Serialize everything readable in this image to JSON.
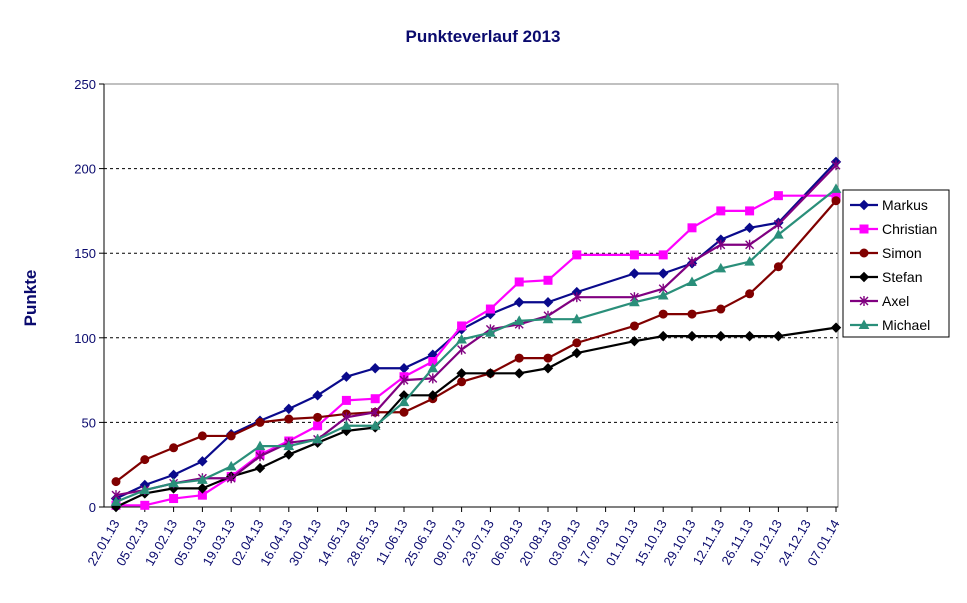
{
  "chart_data": {
    "type": "line",
    "title": "Punkteverlauf 2013",
    "xlabel": "",
    "ylabel": "Punkte",
    "ylim": [
      0,
      250
    ],
    "yticks": [
      0,
      50,
      100,
      150,
      200,
      250
    ],
    "grid": "horizontal dashed",
    "legend_position": "right",
    "categories": [
      "22.01.13",
      "05.02.13",
      "19.02.13",
      "05.03.13",
      "19.03.13",
      "02.04.13",
      "16.04.13",
      "30.04.13",
      "14.05.13",
      "28.05.13",
      "11.06.13",
      "25.06.13",
      "09.07.13",
      "23.07.13",
      "06.08.13",
      "20.08.13",
      "03.09.13",
      "17.09.13",
      "01.10.13",
      "15.10.13",
      "29.10.13",
      "12.11.13",
      "26.11.13",
      "10.12.13",
      "24.12.13",
      "07.01.14"
    ],
    "x": [
      0,
      1,
      2,
      3,
      4,
      5,
      6,
      7,
      8,
      9,
      10,
      11,
      12,
      13,
      14,
      15,
      16,
      17,
      18,
      19,
      20,
      21,
      22,
      23,
      24,
      25
    ],
    "series": [
      {
        "name": "Markus",
        "color": "#0a0a8c",
        "marker": "diamond",
        "points": [
          [
            0,
            5
          ],
          [
            1,
            13
          ],
          [
            2,
            19
          ],
          [
            3,
            27
          ],
          [
            4,
            43
          ],
          [
            5,
            51
          ],
          [
            6,
            58
          ],
          [
            7,
            66
          ],
          [
            8,
            77
          ],
          [
            9,
            82
          ],
          [
            10,
            82
          ],
          [
            11,
            90
          ],
          [
            12,
            105
          ],
          [
            13,
            114
          ],
          [
            14,
            121
          ],
          [
            15,
            121
          ],
          [
            16,
            127
          ],
          [
            18,
            138
          ],
          [
            19,
            138
          ],
          [
            20,
            144
          ],
          [
            21,
            158
          ],
          [
            22,
            165
          ],
          [
            23,
            168
          ],
          [
            25,
            204
          ]
        ]
      },
      {
        "name": "Christian",
        "color": "#ff00ff",
        "marker": "square",
        "points": [
          [
            0,
            1
          ],
          [
            1,
            1
          ],
          [
            2,
            5
          ],
          [
            3,
            7
          ],
          [
            4,
            18
          ],
          [
            5,
            31
          ],
          [
            6,
            39
          ],
          [
            7,
            48
          ],
          [
            8,
            63
          ],
          [
            9,
            64
          ],
          [
            10,
            77
          ],
          [
            11,
            86
          ],
          [
            12,
            107
          ],
          [
            13,
            117
          ],
          [
            14,
            133
          ],
          [
            15,
            134
          ],
          [
            16,
            149
          ],
          [
            18,
            149
          ],
          [
            19,
            149
          ],
          [
            20,
            165
          ],
          [
            21,
            175
          ],
          [
            22,
            175
          ],
          [
            23,
            184
          ],
          [
            25,
            184
          ]
        ]
      },
      {
        "name": "Simon",
        "color": "#800000",
        "marker": "circle",
        "points": [
          [
            0,
            15
          ],
          [
            1,
            28
          ],
          [
            2,
            35
          ],
          [
            3,
            42
          ],
          [
            4,
            42
          ],
          [
            5,
            50
          ],
          [
            6,
            52
          ],
          [
            7,
            53
          ],
          [
            8,
            55
          ],
          [
            9,
            56
          ],
          [
            10,
            56
          ],
          [
            11,
            64
          ],
          [
            12,
            74
          ],
          [
            13,
            79
          ],
          [
            14,
            88
          ],
          [
            15,
            88
          ],
          [
            16,
            97
          ],
          [
            18,
            107
          ],
          [
            19,
            114
          ],
          [
            20,
            114
          ],
          [
            21,
            117
          ],
          [
            22,
            126
          ],
          [
            23,
            142
          ],
          [
            25,
            181
          ]
        ]
      },
      {
        "name": "Stefan",
        "color": "#000000",
        "marker": "diamond",
        "points": [
          [
            0,
            0
          ],
          [
            1,
            8
          ],
          [
            2,
            11
          ],
          [
            3,
            11
          ],
          [
            4,
            18
          ],
          [
            5,
            23
          ],
          [
            6,
            31
          ],
          [
            7,
            38
          ],
          [
            8,
            45
          ],
          [
            9,
            47
          ],
          [
            10,
            66
          ],
          [
            11,
            66
          ],
          [
            12,
            79
          ],
          [
            13,
            79
          ],
          [
            14,
            79
          ],
          [
            15,
            82
          ],
          [
            16,
            91
          ],
          [
            18,
            98
          ],
          [
            19,
            101
          ],
          [
            20,
            101
          ],
          [
            21,
            101
          ],
          [
            22,
            101
          ],
          [
            23,
            101
          ],
          [
            25,
            106
          ]
        ]
      },
      {
        "name": "Axel",
        "color": "#800080",
        "marker": "star",
        "points": [
          [
            0,
            7
          ],
          [
            1,
            10
          ],
          [
            2,
            14
          ],
          [
            3,
            17
          ],
          [
            4,
            17
          ],
          [
            5,
            30
          ],
          [
            6,
            38
          ],
          [
            7,
            40
          ],
          [
            8,
            53
          ],
          [
            9,
            56
          ],
          [
            10,
            75
          ],
          [
            11,
            76
          ],
          [
            12,
            93
          ],
          [
            13,
            105
          ],
          [
            14,
            108
          ],
          [
            15,
            113
          ],
          [
            16,
            124
          ],
          [
            18,
            124
          ],
          [
            19,
            129
          ],
          [
            20,
            145
          ],
          [
            21,
            155
          ],
          [
            22,
            155
          ],
          [
            23,
            167
          ],
          [
            25,
            202
          ]
        ]
      },
      {
        "name": "Michael",
        "color": "#2a8f7a",
        "marker": "triangle",
        "points": [
          [
            0,
            3
          ],
          [
            1,
            10
          ],
          [
            2,
            14
          ],
          [
            3,
            16
          ],
          [
            4,
            24
          ],
          [
            5,
            36
          ],
          [
            6,
            36
          ],
          [
            7,
            40
          ],
          [
            8,
            48
          ],
          [
            9,
            48
          ],
          [
            10,
            62
          ],
          [
            11,
            82
          ],
          [
            12,
            99
          ],
          [
            13,
            103
          ],
          [
            14,
            110
          ],
          [
            15,
            111
          ],
          [
            16,
            111
          ],
          [
            18,
            121
          ],
          [
            19,
            125
          ],
          [
            20,
            133
          ],
          [
            21,
            141
          ],
          [
            22,
            145
          ],
          [
            23,
            161
          ],
          [
            25,
            188
          ]
        ]
      }
    ]
  }
}
